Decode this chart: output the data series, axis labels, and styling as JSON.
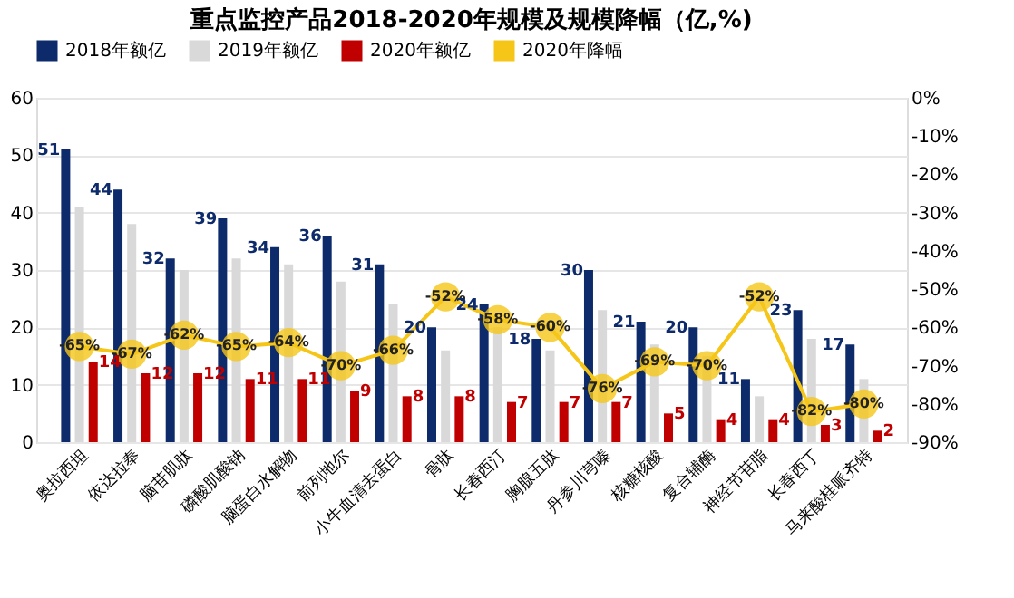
{
  "chart_data": {
    "type": "bar",
    "title": "重点监控产品2018-2020年规模及规模降幅（亿,%)",
    "categories": [
      "奥拉西坦",
      "依达拉奉",
      "脑苷肌肽",
      "磷酸肌酸钠",
      "脑蛋白水解物",
      "前列地尔",
      "小牛血清去蛋白",
      "骨肽",
      "长春西汀",
      "胸腺五肽",
      "丹参川芎嗪",
      "核糖核酸",
      "复合辅酶",
      "神经节苷脂",
      "长春西丁",
      "马来酸桂哌齐特"
    ],
    "series": [
      {
        "name": "2018年额亿",
        "color": "#0d2a6b",
        "values": [
          51,
          44,
          32,
          39,
          34,
          36,
          31,
          20,
          24,
          18,
          30,
          21,
          20,
          11,
          23,
          17
        ],
        "value_labels": [
          "51",
          "44",
          "32",
          "39",
          "34",
          "36",
          "31",
          "20",
          "24",
          "18",
          "30",
          "21",
          "20",
          "11",
          "23",
          "17"
        ]
      },
      {
        "name": "2019年额亿",
        "color": "#d9d9d9",
        "values": [
          41,
          38,
          30,
          32,
          31,
          28,
          24,
          16,
          20,
          16,
          23,
          17,
          15,
          8,
          18,
          11
        ]
      },
      {
        "name": "2020年额亿",
        "color": "#c00000",
        "values": [
          14,
          12,
          12,
          11,
          11,
          9,
          8,
          8,
          7,
          7,
          7,
          5,
          4,
          4,
          3,
          2
        ],
        "value_labels": [
          "14",
          "12",
          "12",
          "11",
          "11",
          "9",
          "8",
          "8",
          "7",
          "7",
          "7",
          "5",
          "4",
          "4",
          "3",
          "2"
        ]
      },
      {
        "name": "2020年降幅",
        "type": "line",
        "axis": "y2",
        "line_style": "solid",
        "color": "#f5c518",
        "marker": "circle",
        "values": [
          -65,
          -67,
          -62,
          -65,
          -64,
          -70,
          -66,
          -52,
          -58,
          -60,
          -76,
          -69,
          -70,
          -52,
          -82,
          -80
        ],
        "value_labels": [
          "-65%",
          "-67%",
          "-62%",
          "-65%",
          "-64%",
          "-70%",
          "-66%",
          "-52%",
          "-58%",
          "-60%",
          "-76%",
          "-69%",
          "-70%",
          "-52%",
          "-82%",
          "-80%"
        ]
      }
    ],
    "ylim": [
      0,
      60
    ],
    "yticks": [
      0,
      10,
      20,
      30,
      40,
      50,
      60
    ],
    "y2lim": [
      -90,
      0
    ],
    "y2ticks": [
      {
        "value": 0,
        "label": "0%"
      },
      {
        "value": -10,
        "label": "-10%"
      },
      {
        "value": -20,
        "label": "-20%"
      },
      {
        "value": -30,
        "label": "-30%"
      },
      {
        "value": -40,
        "label": "-40%"
      },
      {
        "value": -50,
        "label": "-50%"
      },
      {
        "value": -60,
        "label": "-60%"
      },
      {
        "value": -70,
        "label": "-70%"
      },
      {
        "value": -80,
        "label": "-80%"
      },
      {
        "value": -90,
        "label": "-90%"
      }
    ],
    "grid": "y",
    "legend": "top"
  }
}
